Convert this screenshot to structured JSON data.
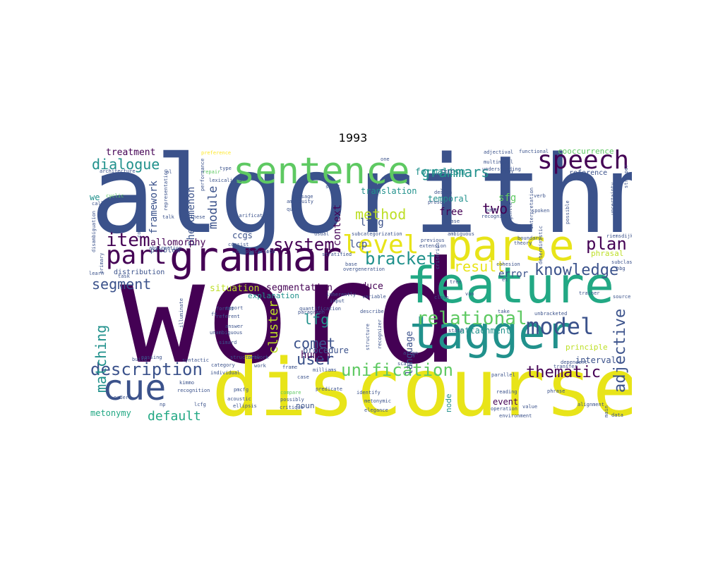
{
  "chart_data": {
    "type": "wordcloud",
    "title": "1993",
    "colors": [
      "#440154",
      "#3b528b",
      "#21918c",
      "#5ec962",
      "#fde725"
    ],
    "words": [
      {
        "text": "algorithm",
        "c": "#3b528b"
      },
      {
        "text": "word",
        "c": "#440154"
      },
      {
        "text": "discourse",
        "c": "#e8e419"
      },
      {
        "text": "feature",
        "c": "#22a884"
      },
      {
        "text": "tagger",
        "c": "#21918c"
      },
      {
        "text": "grammar",
        "c": "#440154"
      },
      {
        "text": "parse",
        "c": "#e8e419"
      },
      {
        "text": "sentence",
        "c": "#5ec962"
      },
      {
        "text": "cue",
        "c": "#3b528b"
      },
      {
        "text": "speech",
        "c": "#440154"
      },
      {
        "text": "part",
        "c": "#440154"
      },
      {
        "text": "model",
        "c": "#3b528b"
      },
      {
        "text": "level",
        "c": "#e8e419"
      },
      {
        "text": "item",
        "c": "#440154"
      },
      {
        "text": "description",
        "c": "#3b528b"
      },
      {
        "text": "unification",
        "c": "#5ec962"
      },
      {
        "text": "relational",
        "c": "#5ec962"
      },
      {
        "text": "knowledge",
        "c": "#3b528b"
      },
      {
        "text": "thematic",
        "c": "#440154"
      },
      {
        "text": "system",
        "c": "#440154"
      },
      {
        "text": "bracket",
        "c": "#21918c"
      },
      {
        "text": "plan",
        "c": "#440154"
      },
      {
        "text": "adjective",
        "c": "#3b528b"
      },
      {
        "text": "dialogue",
        "c": "#21918c"
      },
      {
        "text": "segment",
        "c": "#3b528b"
      },
      {
        "text": "matching",
        "c": "#21918c"
      },
      {
        "text": "user",
        "c": "#3b528b"
      },
      {
        "text": "method",
        "c": "#bddf26"
      },
      {
        "text": "lfg",
        "c": "#21918c"
      },
      {
        "text": "cluster",
        "c": "#bddf26"
      },
      {
        "text": "grammars",
        "c": "#21918c"
      },
      {
        "text": "two",
        "c": "#440154"
      },
      {
        "text": "comet",
        "c": "#3b528b"
      },
      {
        "text": "result",
        "c": "#e8e419"
      },
      {
        "text": "default",
        "c": "#22a884"
      },
      {
        "text": "module",
        "c": "#3b528b"
      },
      {
        "text": "framework",
        "c": "#3b528b"
      },
      {
        "text": "context",
        "c": "#440154"
      },
      {
        "text": "phenomenon",
        "c": "#3b528b"
      },
      {
        "text": "language",
        "c": "#3b528b"
      },
      {
        "text": "allomorphy",
        "c": "#440154"
      },
      {
        "text": "formalism",
        "c": "#21918c"
      },
      {
        "text": "segmentation",
        "c": "#440154"
      },
      {
        "text": "situation",
        "c": "#bddf26"
      },
      {
        "text": "produce",
        "c": "#440154"
      },
      {
        "text": "metonymy",
        "c": "#22a884"
      },
      {
        "text": "treatment",
        "c": "#440154"
      },
      {
        "text": "translation",
        "c": "#21918c"
      },
      {
        "text": "temporal",
        "c": "#21918c"
      },
      {
        "text": "free",
        "c": "#440154"
      },
      {
        "text": "sfg",
        "c": "#5ec962"
      },
      {
        "text": "ltag",
        "c": "#3b528b"
      },
      {
        "text": "lcp",
        "c": "#3b528b"
      },
      {
        "text": "ccgs",
        "c": "#3b528b"
      },
      {
        "text": "human",
        "c": "#440154"
      },
      {
        "text": "explanation",
        "c": "#21918c"
      },
      {
        "text": "procedure",
        "c": "#3b528b"
      },
      {
        "text": "attachment",
        "c": "#21918c"
      },
      {
        "text": "error",
        "c": "#3b528b"
      },
      {
        "text": "event",
        "c": "#440154"
      },
      {
        "text": "principle",
        "c": "#bddf26"
      },
      {
        "text": "interval",
        "c": "#3b528b"
      },
      {
        "text": "strategy",
        "c": "#bddf26"
      },
      {
        "text": "noun",
        "c": "#3b528b"
      },
      {
        "text": "node",
        "c": "#21918c"
      },
      {
        "text": "cooccurrence",
        "c": "#5ec962"
      },
      {
        "text": "reference",
        "c": "#3b528b"
      },
      {
        "text": "problem",
        "c": "#3b528b"
      },
      {
        "text": "distribution",
        "c": "#3b528b"
      },
      {
        "text": "phrasal",
        "c": "#bddf26"
      },
      {
        "text": "we",
        "c": "#21918c"
      },
      {
        "text": "architecture",
        "c": "#3b528b"
      },
      {
        "text": "preference",
        "c": "#fde725"
      },
      {
        "text": "repair",
        "c": "#5ec962"
      },
      {
        "text": "type",
        "c": "#3b528b"
      },
      {
        "text": "lexicalized",
        "c": "#3b528b"
      },
      {
        "text": "shift",
        "c": "#3b528b"
      },
      {
        "text": "ambiguity",
        "c": "#3b528b"
      },
      {
        "text": "query",
        "c": "#3b528b"
      },
      {
        "text": "clarification",
        "c": "#3b528b"
      },
      {
        "text": "morphotactics",
        "c": "#3b528b"
      },
      {
        "text": "subcategorization",
        "c": "#3b528b"
      },
      {
        "text": "stratified",
        "c": "#3b528b"
      },
      {
        "text": "overgeneration",
        "c": "#3b528b"
      },
      {
        "text": "consist",
        "c": "#3b528b"
      },
      {
        "text": "chinese",
        "c": "#3b528b"
      },
      {
        "text": "talk",
        "c": "#3b528b"
      },
      {
        "text": "abstraction",
        "c": "#3b528b"
      },
      {
        "text": "cyclic",
        "c": "#5ec962"
      },
      {
        "text": "call",
        "c": "#3b528b"
      },
      {
        "text": "design",
        "c": "#3b528b"
      },
      {
        "text": "phase",
        "c": "#3b528b"
      },
      {
        "text": "recognize",
        "c": "#3b528b"
      },
      {
        "text": "ambiguous",
        "c": "#3b528b"
      },
      {
        "text": "previous",
        "c": "#3b528b"
      },
      {
        "text": "extension",
        "c": "#3b528b"
      },
      {
        "text": "text",
        "c": "#3b528b"
      },
      {
        "text": "patr",
        "c": "#3b528b"
      },
      {
        "text": "understanding",
        "c": "#3b528b"
      },
      {
        "text": "multimodal",
        "c": "#3b528b"
      },
      {
        "text": "adjectival",
        "c": "#3b528b"
      },
      {
        "text": "functional",
        "c": "#3b528b"
      },
      {
        "text": "interpretation",
        "c": "#3b528b"
      },
      {
        "text": "spoken",
        "c": "#3b528b"
      },
      {
        "text": "boundary",
        "c": "#3b528b"
      },
      {
        "text": "uncertainty",
        "c": "#3b528b"
      },
      {
        "text": "probabilistic",
        "c": "#3b528b"
      },
      {
        "text": "riemsdijk",
        "c": "#3b528b"
      },
      {
        "text": "theory",
        "c": "#3b528b"
      },
      {
        "text": "cohesion",
        "c": "#3b528b"
      },
      {
        "text": "deterministic",
        "c": "#3b528b"
      },
      {
        "text": "trainer",
        "c": "#3b528b"
      },
      {
        "text": "unbracketed",
        "c": "#3b528b"
      },
      {
        "text": "take",
        "c": "#3b528b"
      },
      {
        "text": "dependent",
        "c": "#3b528b"
      },
      {
        "text": "subclass",
        "c": "#3b528b"
      },
      {
        "text": "hbg",
        "c": "#3b528b"
      },
      {
        "text": "source",
        "c": "#3b528b"
      },
      {
        "text": "parallel",
        "c": "#3b528b"
      },
      {
        "text": "reading",
        "c": "#3b528b"
      },
      {
        "text": "phrase",
        "c": "#3b528b"
      },
      {
        "text": "alignment",
        "c": "#3b528b"
      },
      {
        "text": "transfer",
        "c": "#3b528b"
      },
      {
        "text": "operation",
        "c": "#3b528b"
      },
      {
        "text": "value",
        "c": "#3b528b"
      },
      {
        "text": "environment",
        "c": "#3b528b"
      },
      {
        "text": "main",
        "c": "#3b528b"
      },
      {
        "text": "data",
        "c": "#3b528b"
      },
      {
        "text": "align",
        "c": "#3b528b"
      },
      {
        "text": "scale",
        "c": "#3b528b"
      },
      {
        "text": "identify",
        "c": "#3b528b"
      },
      {
        "text": "metonymic",
        "c": "#3b528b"
      },
      {
        "text": "elegance",
        "c": "#3b528b"
      },
      {
        "text": "predicate",
        "c": "#3b528b"
      },
      {
        "text": "compare",
        "c": "#5ec962"
      },
      {
        "text": "possibly",
        "c": "#3b528b"
      },
      {
        "text": "critique",
        "c": "#3b528b"
      },
      {
        "text": "ellipsis",
        "c": "#3b528b"
      },
      {
        "text": "acoustic",
        "c": "#3b528b"
      },
      {
        "text": "pmcfg",
        "c": "#3b528b"
      },
      {
        "text": "lcfg",
        "c": "#3b528b"
      },
      {
        "text": "np",
        "c": "#3b528b"
      },
      {
        "text": "recognition",
        "c": "#3b528b"
      },
      {
        "text": "kimmo",
        "c": "#3b528b"
      },
      {
        "text": "order",
        "c": "#3b528b"
      },
      {
        "text": "build",
        "c": "#3b528b"
      },
      {
        "text": "passing",
        "c": "#3b528b"
      },
      {
        "text": "syntactic",
        "c": "#3b528b"
      },
      {
        "text": "category",
        "c": "#3b528b"
      },
      {
        "text": "work",
        "c": "#3b528b"
      },
      {
        "text": "frame",
        "c": "#3b528b"
      },
      {
        "text": "milliams",
        "c": "#3b528b"
      },
      {
        "text": "case",
        "c": "#3b528b"
      },
      {
        "text": "network",
        "c": "#3b528b"
      },
      {
        "text": "individual",
        "c": "#3b528b"
      },
      {
        "text": "structural",
        "c": "#3b528b"
      },
      {
        "text": "simard",
        "c": "#3b528b"
      },
      {
        "text": "paragraph",
        "c": "#3b528b"
      },
      {
        "text": "quantification",
        "c": "#3b528b"
      },
      {
        "text": "describe",
        "c": "#3b528b"
      },
      {
        "text": "input",
        "c": "#3b528b"
      },
      {
        "text": "structure",
        "c": "#3b528b"
      },
      {
        "text": "recognizer",
        "c": "#3b528b"
      },
      {
        "text": "state",
        "c": "#3b528b"
      },
      {
        "text": "class",
        "c": "#3b528b"
      },
      {
        "text": "variable",
        "c": "#3b528b"
      },
      {
        "text": "inherently",
        "c": "#3b528b"
      },
      {
        "text": "base",
        "c": "#3b528b"
      },
      {
        "text": "usual",
        "c": "#3b528b"
      },
      {
        "text": "etc",
        "c": "#3b528b"
      },
      {
        "text": "report",
        "c": "#3b528b"
      },
      {
        "text": "referent",
        "c": "#3b528b"
      },
      {
        "text": "ft",
        "c": "#3b528b"
      },
      {
        "text": "format",
        "c": "#3b528b"
      },
      {
        "text": "answer",
        "c": "#3b528b"
      },
      {
        "text": "unambiguous",
        "c": "#3b528b"
      },
      {
        "text": "illuminate",
        "c": "#3b528b"
      },
      {
        "text": "cooccurrences",
        "c": "#3b528b"
      },
      {
        "text": "representation",
        "c": "#3b528b"
      },
      {
        "text": "performance",
        "c": "#3b528b"
      },
      {
        "text": "primary",
        "c": "#3b528b"
      },
      {
        "text": "disambiguation",
        "c": "#3b528b"
      },
      {
        "text": "task",
        "c": "#3b528b"
      },
      {
        "text": "learn",
        "c": "#3b528b"
      },
      {
        "text": "message",
        "c": "#3b528b"
      },
      {
        "text": "one",
        "c": "#3b528b"
      },
      {
        "text": "al",
        "c": "#3b528b"
      },
      {
        "text": "fa",
        "c": "#3b528b"
      },
      {
        "text": "prosodic",
        "c": "#3b528b"
      },
      {
        "text": "criterion",
        "c": "#3b528b"
      },
      {
        "text": "may",
        "c": "#3b528b"
      },
      {
        "text": "verb",
        "c": "#3b528b"
      },
      {
        "text": "possible",
        "c": "#3b528b"
      },
      {
        "text": "gentle",
        "c": "#3b528b"
      },
      {
        "text": "et",
        "c": "#3b528b"
      },
      {
        "text": "van",
        "c": "#3b528b"
      },
      {
        "text": "tree",
        "c": "#3b528b"
      },
      {
        "text": "stripper",
        "c": "#3b528b"
      }
    ]
  }
}
